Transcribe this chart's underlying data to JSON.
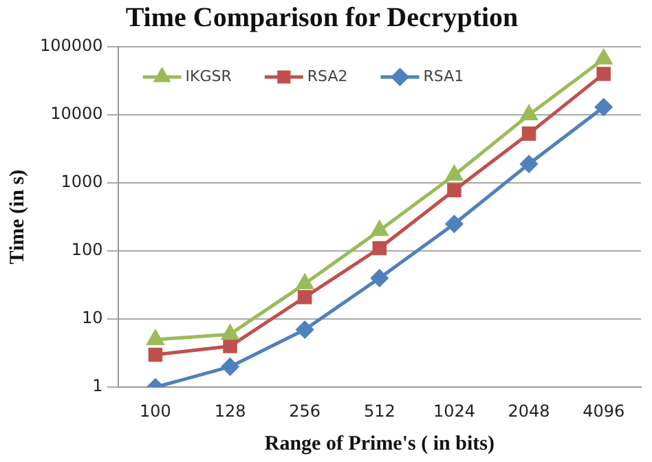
{
  "chart_data": {
    "type": "line",
    "title": "Time Comparison for Decryption",
    "xlabel": "Range of Prime's ( in bits)",
    "ylabel": "Time (in s)",
    "categories": [
      "100",
      "128",
      "256",
      "512",
      "1024",
      "2048",
      "4096"
    ],
    "series": [
      {
        "name": "IKGSR",
        "color": "#9bbb59",
        "marker": "triangle",
        "values": [
          5,
          6,
          33,
          200,
          1300,
          10000,
          66000
        ]
      },
      {
        "name": "RSA2",
        "color": "#c0504d",
        "marker": "square",
        "values": [
          3,
          4,
          21,
          110,
          780,
          5300,
          40000
        ]
      },
      {
        "name": "RSA1",
        "color": "#4f81bd",
        "marker": "diamond",
        "values": [
          1,
          2,
          7,
          40,
          250,
          1900,
          13000
        ]
      }
    ],
    "log": true,
    "ylim": [
      1,
      100000
    ],
    "yticks": [
      1,
      10,
      100,
      1000,
      10000,
      100000
    ],
    "grid": "y",
    "legend": "top left"
  }
}
